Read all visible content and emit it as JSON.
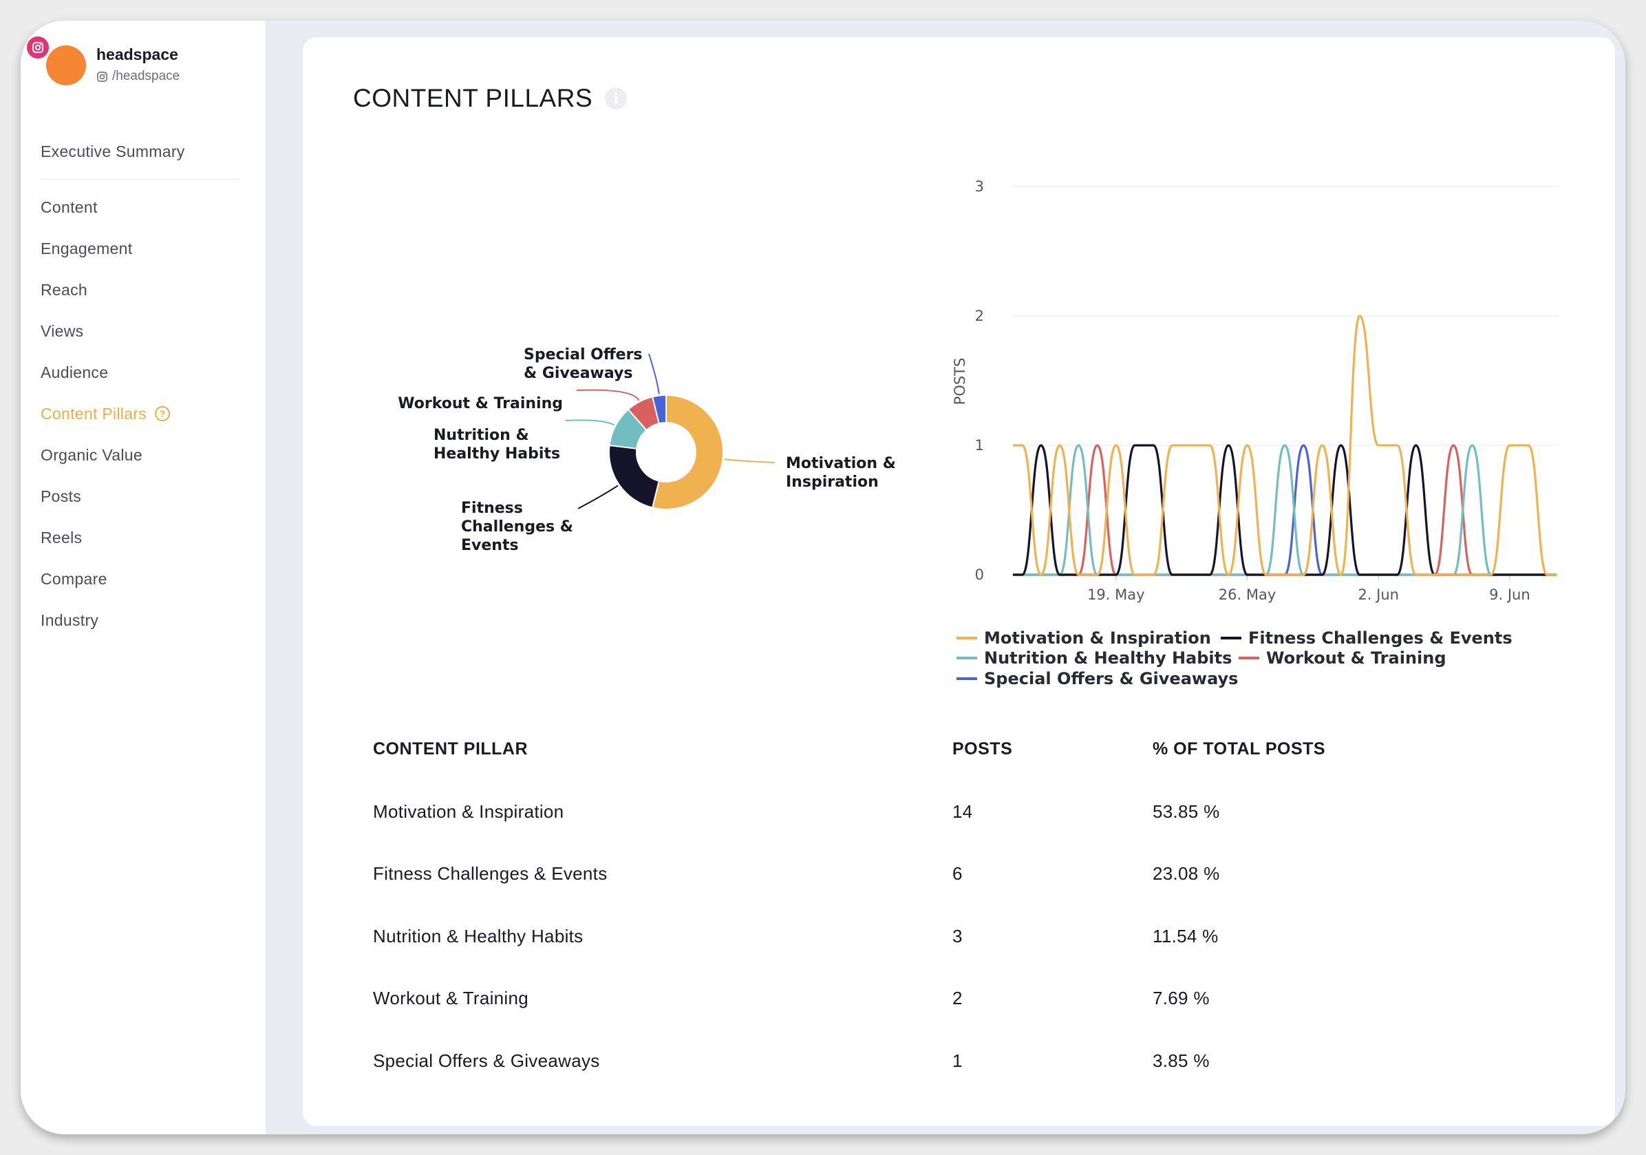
{
  "profile": {
    "name": "headspace",
    "handle": "/headspace"
  },
  "nav": {
    "top": "Executive Summary",
    "items": [
      "Content",
      "Engagement",
      "Reach",
      "Views",
      "Audience",
      "Content Pillars",
      "Organic Value",
      "Posts",
      "Reels",
      "Compare",
      "Industry"
    ],
    "active": "Content Pillars"
  },
  "section": {
    "title": "CONTENT PILLARS"
  },
  "colors": {
    "motivation": "#f0b14f",
    "fitness": "#15142b",
    "nutrition": "#72bdc0",
    "workout": "#d9605f",
    "special": "#4a62d8",
    "accent": "#f0ad3e"
  },
  "donut": {
    "labels": {
      "motivation": [
        "Motivation &",
        "Inspiration"
      ],
      "fitness": [
        "Fitness",
        "Challenges &",
        "Events"
      ],
      "nutrition": [
        "Nutrition &",
        "Healthy Habits"
      ],
      "workout": [
        "Workout & Training"
      ],
      "special": [
        "Special Offers",
        "& Giveaways"
      ]
    }
  },
  "chart_data": [
    {
      "type": "pie",
      "categories": [
        "Motivation & Inspiration",
        "Fitness Challenges & Events",
        "Nutrition & Healthy Habits",
        "Workout & Training",
        "Special Offers & Giveaways"
      ],
      "values": [
        14,
        6,
        3,
        2,
        1
      ]
    },
    {
      "type": "line",
      "ylabel": "POSTS",
      "ylim": [
        0,
        3
      ],
      "yticks": [
        "0",
        "1",
        "2",
        "3"
      ],
      "xticks": [
        "19. May",
        "26. May",
        "2. Jun",
        "9. Jun"
      ],
      "xtick_days": [
        19,
        26,
        33,
        40
      ],
      "xlim_days": [
        13.5,
        42.5
      ],
      "days": [
        13.5,
        14,
        15,
        16,
        17,
        18,
        19,
        20,
        21,
        22,
        23,
        24,
        25,
        26,
        27,
        28,
        29,
        30,
        31,
        32,
        33,
        34,
        35,
        36,
        37,
        38,
        39,
        40,
        41,
        42,
        42.5
      ],
      "legend_placement": "bottom",
      "series": [
        {
          "name": "Motivation & Inspiration",
          "key": "motivation",
          "values": [
            1,
            1,
            0,
            1,
            0,
            0,
            1,
            0,
            0,
            1,
            1,
            1,
            0,
            1,
            0,
            0,
            0,
            1,
            0,
            2,
            1,
            1,
            0,
            0,
            0,
            0,
            0,
            1,
            1,
            0,
            0
          ]
        },
        {
          "name": "Fitness Challenges & Events",
          "key": "fitness",
          "values": [
            0,
            0,
            1,
            0,
            0,
            0,
            0,
            1,
            1,
            0,
            0,
            0,
            1,
            0,
            0,
            0,
            0,
            0,
            1,
            0,
            0,
            0,
            1,
            0,
            0,
            0,
            0,
            0,
            0,
            0,
            0
          ]
        },
        {
          "name": "Nutrition & Healthy Habits",
          "key": "nutrition",
          "values": [
            0,
            0,
            0,
            0,
            1,
            0,
            0,
            0,
            0,
            0,
            0,
            0,
            0,
            0,
            0,
            1,
            0,
            0,
            0,
            0,
            0,
            0,
            0,
            0,
            0,
            1,
            0,
            0,
            0,
            0,
            0
          ]
        },
        {
          "name": "Workout & Training",
          "key": "workout",
          "values": [
            0,
            0,
            0,
            0,
            0,
            1,
            0,
            0,
            0,
            0,
            0,
            0,
            0,
            0,
            0,
            0,
            0,
            0,
            0,
            0,
            0,
            0,
            0,
            0,
            1,
            0,
            0,
            0,
            0,
            0,
            0
          ]
        },
        {
          "name": "Special Offers & Giveaways",
          "key": "special",
          "values": [
            0,
            0,
            0,
            0,
            0,
            0,
            0,
            0,
            0,
            0,
            0,
            0,
            0,
            0,
            0,
            0,
            1,
            0,
            0,
            0,
            0,
            0,
            0,
            0,
            0,
            0,
            0,
            0,
            0,
            0,
            0
          ]
        }
      ]
    }
  ],
  "table": {
    "headers": [
      "CONTENT PILLAR",
      "POSTS",
      "% OF TOTAL POSTS"
    ],
    "rows": [
      [
        "Motivation & Inspiration",
        "14",
        "53.85 %"
      ],
      [
        "Fitness Challenges & Events",
        "6",
        "23.08 %"
      ],
      [
        "Nutrition & Healthy Habits",
        "3",
        "11.54 %"
      ],
      [
        "Workout & Training",
        "2",
        "7.69 %"
      ],
      [
        "Special Offers & Giveaways",
        "1",
        "3.85 %"
      ]
    ]
  }
}
